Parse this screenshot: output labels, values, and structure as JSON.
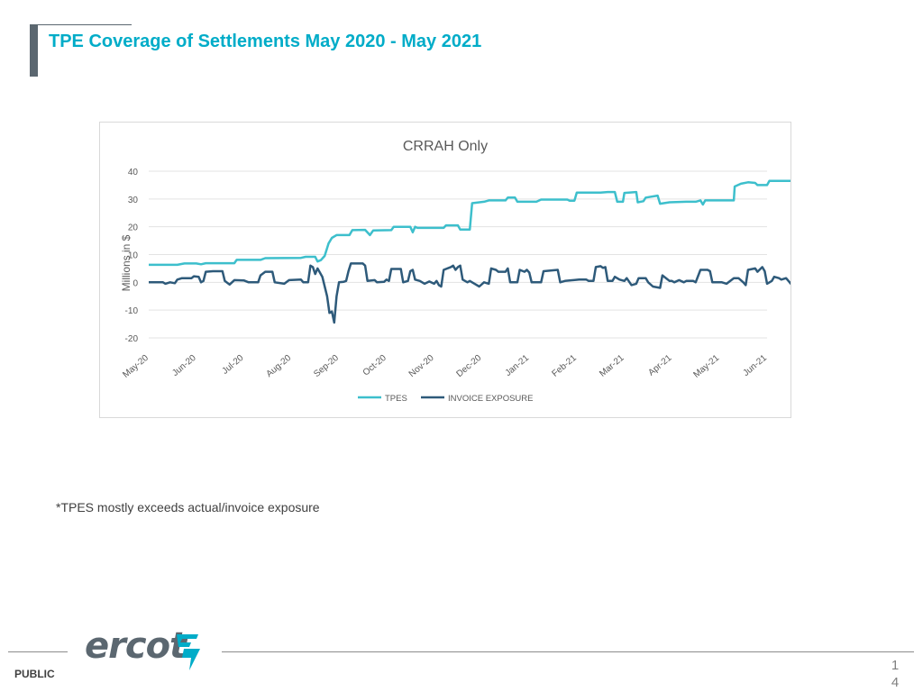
{
  "slide": {
    "title": "TPE Coverage of Settlements May 2020 - May 2021",
    "footnote": "*TPES mostly exceeds actual/invoice exposure",
    "classification": "PUBLIC",
    "page_number_line1": "1",
    "page_number_line2": "4",
    "logo_text": "ercot",
    "title_color": "#00acc8"
  },
  "chart_data": {
    "type": "line",
    "title": "CRRAH Only",
    "ylabel": "Millions in $",
    "xlabel": "",
    "ylim": [
      -20,
      40
    ],
    "yticks": [
      40,
      30,
      20,
      10,
      0,
      -10,
      -20
    ],
    "grid": true,
    "legend_position": "bottom",
    "categories": [
      "May-20",
      "Jun-20",
      "Jul-20",
      "Aug-20",
      "Sep-20",
      "Oct-20",
      "Nov-20",
      "Dec-20",
      "Jan-21",
      "Feb-21",
      "Mar-21",
      "Apr-21",
      "May-21",
      "Jun-21"
    ],
    "series": [
      {
        "name": "TPES",
        "color": "#3dbfcc",
        "points": [
          [
            0,
            6.3
          ],
          [
            0.6,
            6.3
          ],
          [
            0.75,
            6.8
          ],
          [
            1.0,
            6.8
          ],
          [
            1.1,
            6.5
          ],
          [
            1.2,
            6.9
          ],
          [
            1.8,
            6.9
          ],
          [
            1.85,
            8.1
          ],
          [
            2.35,
            8.1
          ],
          [
            2.45,
            8.7
          ],
          [
            3.2,
            8.8
          ],
          [
            3.3,
            9.2
          ],
          [
            3.5,
            9.2
          ],
          [
            3.55,
            7.5
          ],
          [
            3.62,
            8.0
          ],
          [
            3.7,
            9.5
          ],
          [
            3.78,
            14.0
          ],
          [
            3.85,
            16.0
          ],
          [
            3.95,
            17.0
          ],
          [
            4.1,
            17.0
          ],
          [
            4.22,
            17.0
          ],
          [
            4.28,
            18.8
          ],
          [
            4.55,
            18.9
          ],
          [
            4.65,
            17.0
          ],
          [
            4.72,
            18.7
          ],
          [
            5.1,
            18.8
          ],
          [
            5.15,
            20.0
          ],
          [
            5.5,
            20.0
          ],
          [
            5.55,
            18.0
          ],
          [
            5.6,
            20.0
          ],
          [
            5.65,
            19.6
          ],
          [
            6.2,
            19.6
          ],
          [
            6.25,
            20.5
          ],
          [
            6.5,
            20.5
          ],
          [
            6.55,
            19.0
          ],
          [
            6.75,
            19.0
          ],
          [
            6.8,
            28.5
          ],
          [
            7.05,
            29.0
          ],
          [
            7.15,
            29.5
          ],
          [
            7.5,
            29.5
          ],
          [
            7.55,
            30.5
          ],
          [
            7.7,
            30.5
          ],
          [
            7.75,
            29.0
          ],
          [
            8.15,
            29.0
          ],
          [
            8.25,
            29.8
          ],
          [
            8.8,
            29.8
          ],
          [
            8.85,
            29.4
          ],
          [
            8.95,
            29.4
          ],
          [
            9.0,
            32.3
          ],
          [
            9.5,
            32.3
          ],
          [
            9.65,
            32.5
          ],
          [
            9.8,
            32.5
          ],
          [
            9.85,
            29.0
          ],
          [
            9.97,
            29.0
          ],
          [
            10.0,
            32.2
          ],
          [
            10.25,
            32.5
          ],
          [
            10.28,
            28.8
          ],
          [
            10.4,
            29.2
          ],
          [
            10.45,
            30.5
          ],
          [
            10.7,
            31.2
          ],
          [
            10.75,
            28.3
          ],
          [
            10.95,
            28.8
          ],
          [
            11.3,
            29.0
          ],
          [
            11.5,
            29.0
          ],
          [
            11.6,
            29.5
          ],
          [
            11.65,
            28.0
          ],
          [
            11.7,
            29.5
          ],
          [
            12.3,
            29.5
          ],
          [
            12.32,
            34.5
          ],
          [
            12.45,
            35.5
          ],
          [
            12.6,
            36.0
          ],
          [
            12.75,
            35.8
          ],
          [
            12.8,
            35.0
          ],
          [
            13.0,
            35.0
          ],
          [
            13.05,
            36.5
          ],
          [
            13.55,
            36.5
          ],
          [
            13.6,
            36.8
          ],
          [
            13.7,
            37.0
          ],
          [
            13.8,
            37.3
          ],
          [
            13.9,
            37.5
          ]
        ]
      },
      {
        "name": "INVOICE EXPOSURE",
        "color": "#2e5a7a",
        "points": [
          [
            0,
            0
          ],
          [
            0.3,
            0
          ],
          [
            0.35,
            -0.5
          ],
          [
            0.45,
            0
          ],
          [
            0.55,
            -0.3
          ],
          [
            0.6,
            1.0
          ],
          [
            0.7,
            1.5
          ],
          [
            0.9,
            1.5
          ],
          [
            0.95,
            2.2
          ],
          [
            1.05,
            2.0
          ],
          [
            1.1,
            0
          ],
          [
            1.15,
            0.5
          ],
          [
            1.2,
            3.8
          ],
          [
            1.35,
            4.0
          ],
          [
            1.55,
            4.0
          ],
          [
            1.6,
            0.5
          ],
          [
            1.7,
            -0.8
          ],
          [
            1.8,
            0.8
          ],
          [
            2.0,
            0.7
          ],
          [
            2.1,
            0
          ],
          [
            2.3,
            0
          ],
          [
            2.35,
            2.5
          ],
          [
            2.45,
            3.8
          ],
          [
            2.6,
            3.8
          ],
          [
            2.65,
            0
          ],
          [
            2.85,
            -0.5
          ],
          [
            2.95,
            0.8
          ],
          [
            3.2,
            1.0
          ],
          [
            3.25,
            0
          ],
          [
            3.35,
            0
          ],
          [
            3.4,
            6.0
          ],
          [
            3.45,
            5.5
          ],
          [
            3.5,
            3.0
          ],
          [
            3.55,
            5.0
          ],
          [
            3.65,
            2.0
          ],
          [
            3.75,
            -5.0
          ],
          [
            3.8,
            -11.0
          ],
          [
            3.85,
            -10.5
          ],
          [
            3.9,
            -14.5
          ],
          [
            3.95,
            -5.0
          ],
          [
            4.0,
            0
          ],
          [
            4.1,
            0.2
          ],
          [
            4.15,
            0.5
          ],
          [
            4.2,
            4.0
          ],
          [
            4.25,
            6.8
          ],
          [
            4.5,
            6.8
          ],
          [
            4.55,
            6.0
          ],
          [
            4.6,
            0.5
          ],
          [
            4.75,
            0.8
          ],
          [
            4.8,
            0
          ],
          [
            4.95,
            0.2
          ],
          [
            5.0,
            1.0
          ],
          [
            5.05,
            0.5
          ],
          [
            5.1,
            4.8
          ],
          [
            5.3,
            4.8
          ],
          [
            5.35,
            0
          ],
          [
            5.45,
            0.5
          ],
          [
            5.5,
            4.0
          ],
          [
            5.55,
            4.5
          ],
          [
            5.6,
            1.0
          ],
          [
            5.7,
            0.5
          ],
          [
            5.8,
            -0.5
          ],
          [
            5.9,
            0.3
          ],
          [
            6.0,
            -0.5
          ],
          [
            6.05,
            0.5
          ],
          [
            6.1,
            -1.0
          ],
          [
            6.15,
            -1.5
          ],
          [
            6.2,
            4.5
          ],
          [
            6.35,
            5.5
          ],
          [
            6.4,
            6.0
          ],
          [
            6.45,
            4.5
          ],
          [
            6.5,
            5.5
          ],
          [
            6.55,
            6.0
          ],
          [
            6.6,
            1.0
          ],
          [
            6.7,
            0
          ],
          [
            6.75,
            0.5
          ],
          [
            6.85,
            -0.5
          ],
          [
            6.95,
            -1.5
          ],
          [
            7.05,
            0
          ],
          [
            7.15,
            -0.5
          ],
          [
            7.2,
            5.0
          ],
          [
            7.3,
            4.5
          ],
          [
            7.35,
            3.8
          ],
          [
            7.5,
            3.8
          ],
          [
            7.55,
            5.0
          ],
          [
            7.6,
            0
          ],
          [
            7.75,
            0
          ],
          [
            7.8,
            4.5
          ],
          [
            7.9,
            3.8
          ],
          [
            7.95,
            4.5
          ],
          [
            8.0,
            3.5
          ],
          [
            8.05,
            0
          ],
          [
            8.25,
            0
          ],
          [
            8.3,
            4.0
          ],
          [
            8.6,
            4.5
          ],
          [
            8.65,
            0
          ],
          [
            8.75,
            0.5
          ],
          [
            9.05,
            1.0
          ],
          [
            9.2,
            1.0
          ],
          [
            9.25,
            0.5
          ],
          [
            9.35,
            0.5
          ],
          [
            9.4,
            5.5
          ],
          [
            9.5,
            5.8
          ],
          [
            9.55,
            5.2
          ],
          [
            9.6,
            5.5
          ],
          [
            9.65,
            0.5
          ],
          [
            9.75,
            0.5
          ],
          [
            9.8,
            2.0
          ],
          [
            9.9,
            1.0
          ],
          [
            10.0,
            0.5
          ],
          [
            10.05,
            1.5
          ],
          [
            10.15,
            -1.0
          ],
          [
            10.25,
            -0.5
          ],
          [
            10.3,
            1.5
          ],
          [
            10.45,
            1.5
          ],
          [
            10.5,
            0
          ],
          [
            10.6,
            -1.5
          ],
          [
            10.75,
            -2.0
          ],
          [
            10.8,
            2.5
          ],
          [
            10.95,
            0.5
          ],
          [
            11.0,
            0.5
          ],
          [
            11.05,
            0
          ],
          [
            11.15,
            0.8
          ],
          [
            11.25,
            0
          ],
          [
            11.3,
            0.5
          ],
          [
            11.45,
            0.5
          ],
          [
            11.5,
            0
          ],
          [
            11.6,
            4.5
          ],
          [
            11.75,
            4.5
          ],
          [
            11.8,
            4.0
          ],
          [
            11.85,
            0
          ],
          [
            12.05,
            0
          ],
          [
            12.15,
            -0.5
          ],
          [
            12.3,
            1.5
          ],
          [
            12.4,
            1.5
          ],
          [
            12.5,
            0
          ],
          [
            12.55,
            -1.0
          ],
          [
            12.6,
            4.5
          ],
          [
            12.75,
            5.0
          ],
          [
            12.8,
            3.8
          ],
          [
            12.9,
            5.5
          ],
          [
            12.95,
            4.0
          ],
          [
            13.0,
            -0.5
          ],
          [
            13.1,
            0.5
          ],
          [
            13.15,
            2.0
          ],
          [
            13.25,
            1.5
          ],
          [
            13.3,
            1.0
          ],
          [
            13.4,
            1.5
          ],
          [
            13.5,
            -0.5
          ],
          [
            13.55,
            0.5
          ],
          [
            13.6,
            3.8
          ],
          [
            13.75,
            4.0
          ],
          [
            13.9,
            3.8
          ]
        ]
      }
    ]
  }
}
